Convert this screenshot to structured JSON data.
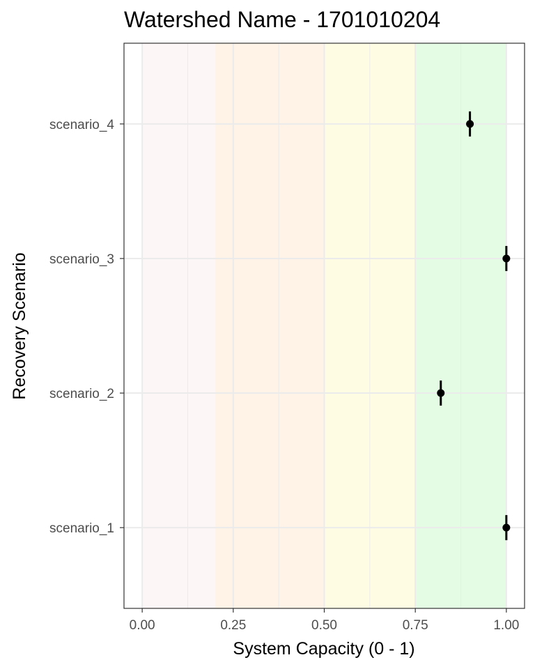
{
  "chart_data": {
    "type": "scatter",
    "title": "Watershed Name - 1701010204",
    "xlabel": "System Capacity (0 - 1)",
    "ylabel": "Recovery Scenario",
    "xlim": [
      -0.05,
      1.05
    ],
    "x_ticks": [
      {
        "value": 0,
        "label": "0.00"
      },
      {
        "value": 0.25,
        "label": "0.25"
      },
      {
        "value": 0.5,
        "label": "0.50"
      },
      {
        "value": 0.75,
        "label": "0.75"
      },
      {
        "value": 1,
        "label": "1.00"
      }
    ],
    "categories": [
      "scenario_1",
      "scenario_2",
      "scenario_3",
      "scenario_4"
    ],
    "points": [
      {
        "category": "scenario_1",
        "x": 1.0,
        "ymin_err": 1.0,
        "ymax_err": 1.0
      },
      {
        "category": "scenario_2",
        "x": 0.82,
        "ymin_err": 0.82,
        "ymax_err": 0.82
      },
      {
        "category": "scenario_3",
        "x": 1.0,
        "ymin_err": 1.0,
        "ymax_err": 1.0
      },
      {
        "category": "scenario_4",
        "x": 0.9,
        "ymin_err": 0.9,
        "ymax_err": 0.9
      }
    ],
    "bands": [
      {
        "from": 0,
        "to": 0.2,
        "color": "#fdf6f6"
      },
      {
        "from": 0.2,
        "to": 0.5,
        "color": "#fef3e6"
      },
      {
        "from": 0.5,
        "to": 0.75,
        "color": "#fefde4"
      },
      {
        "from": 0.75,
        "to": 1.0,
        "color": "#e4fce4"
      }
    ],
    "grid": true,
    "colors": {
      "point": "#000000",
      "grid": "#ebebeb",
      "border": "#333333"
    }
  }
}
